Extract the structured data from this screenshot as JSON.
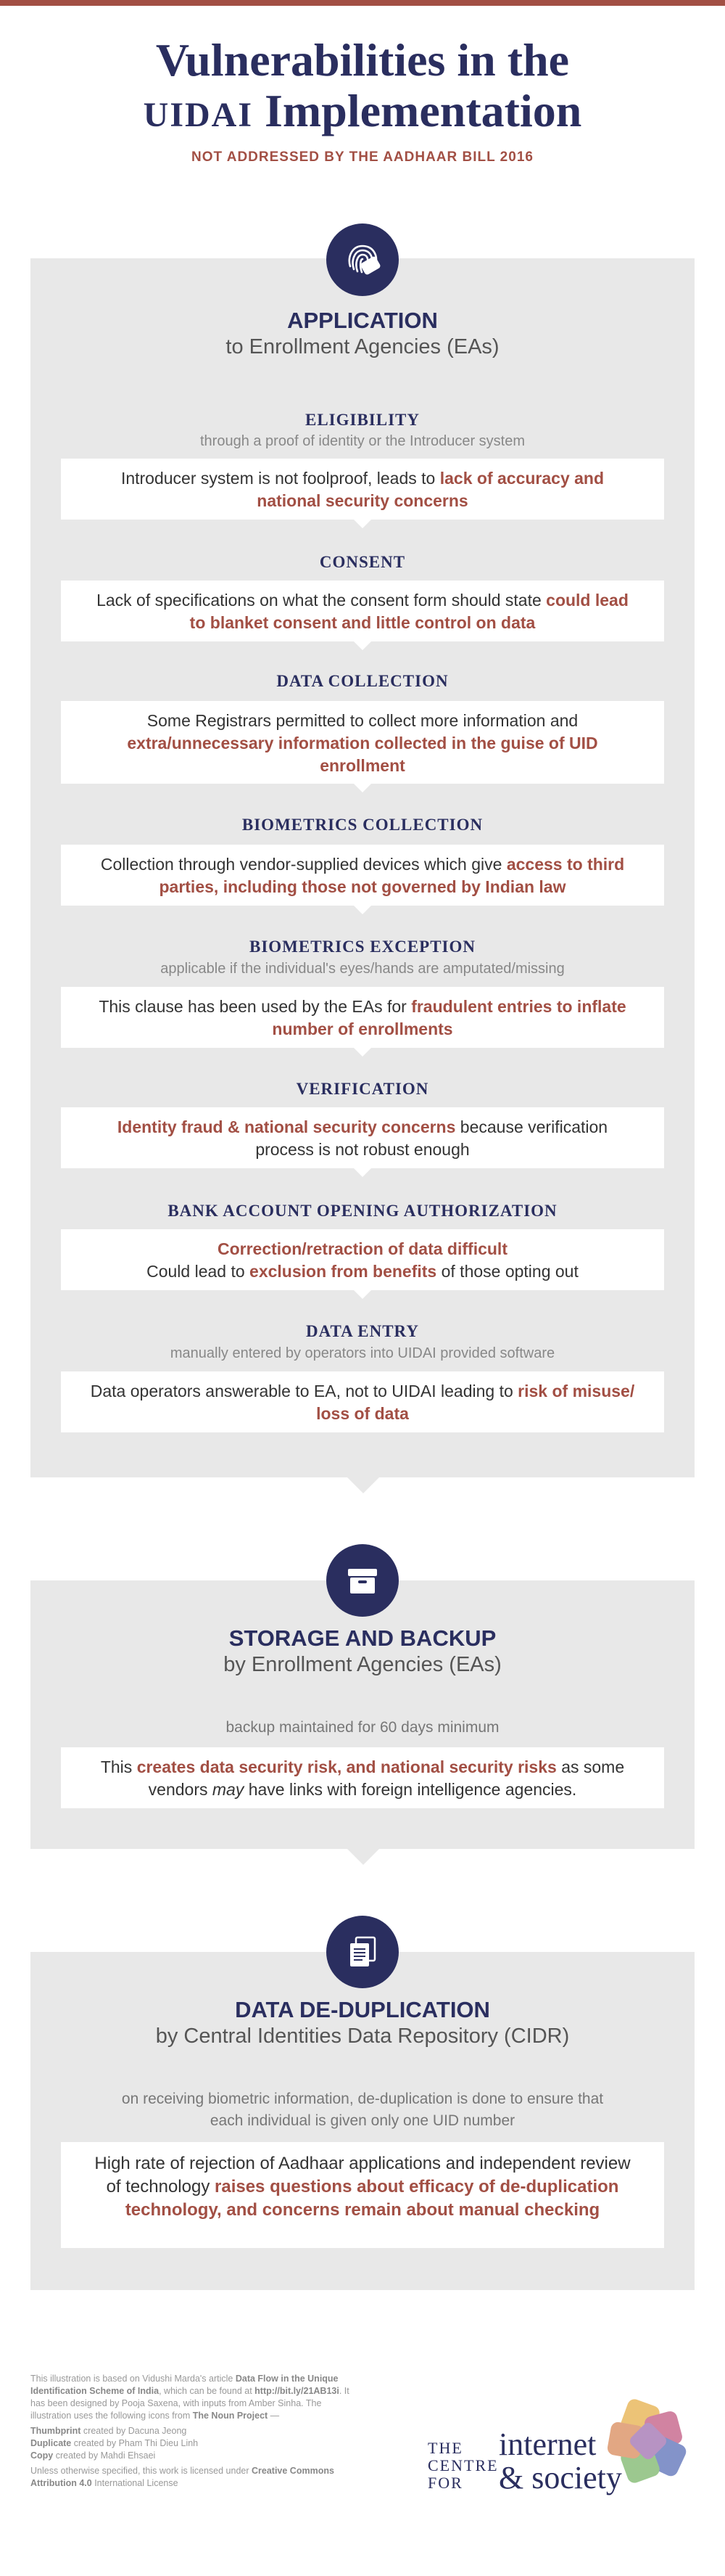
{
  "header": {
    "title_line1": "Vulnerabilities in the",
    "title_line2_small": "UIDAI",
    "title_line2_rest": " Implementation",
    "subtitle": "NOT ADDRESSED BY THE AADHAAR BILL 2016"
  },
  "colors": {
    "navy": "#2a2e5f",
    "accent": "#a24f44",
    "panel": "#e8e8e8"
  },
  "application": {
    "icon": "fingerprint-icon",
    "title": "APPLICATION",
    "subtitle": "to Enrollment Agencies (EAs)",
    "items": [
      {
        "head": "ELIGIBILITY",
        "note": "through a proof of identity or the Introducer system",
        "text_pre": "Introducer system is not foolproof, leads to ",
        "text_hl": "lack of accuracy and national security concerns",
        "text_post": ""
      },
      {
        "head": "CONSENT",
        "note": "",
        "text_pre": "Lack of specifications on what the consent form should state ",
        "text_hl": "could lead to blanket consent and little control on data",
        "text_post": ""
      },
      {
        "head": "DATA COLLECTION",
        "note": "",
        "text_pre": "Some Registrars permitted to collect more information and ",
        "text_hl": "extra/unnecessary information collected in the guise of UID enrollment",
        "text_post": ""
      },
      {
        "head": "BIOMETRICS COLLECTION",
        "note": "",
        "text_pre": "Collection through vendor-supplied devices which give ",
        "text_hl": "access to third parties, including those not governed by Indian law",
        "text_post": ""
      },
      {
        "head": "BIOMETRICS EXCEPTION",
        "note": "applicable if the individual's eyes/hands are amputated/missing",
        "text_pre": "This clause has been used by the EAs for ",
        "text_hl": "fraudulent entries to inflate number of enrollments",
        "text_post": ""
      },
      {
        "head": "VERIFICATION",
        "note": "",
        "text_pre": "",
        "text_hl": "Identity fraud & national security concerns",
        "text_post": " because verification process is not robust enough"
      },
      {
        "head": "BANK ACCOUNT OPENING AUTHORIZATION",
        "note": "",
        "text_pre": "",
        "text_hl": "Correction/retraction of data difficult",
        "text_post": "",
        "text2_pre": "Could lead to ",
        "text2_hl": "exclusion from benefits",
        "text2_post": " of those opting out"
      },
      {
        "head": "DATA ENTRY",
        "note": "manually entered by operators into UIDAI provided software",
        "text_pre": "Data operators answerable to EA, not to UIDAI leading to ",
        "text_hl": "risk of misuse/ loss of data",
        "text_post": ""
      }
    ]
  },
  "storage": {
    "icon": "archive-box-icon",
    "title": "STORAGE AND BACKUP",
    "subtitle": "by Enrollment Agencies (EAs)",
    "note": "backup maintained for 60 days minimum",
    "text_pre": "This ",
    "text_hl": "creates data security risk, and national security risks",
    "text_mid": " as some vendors ",
    "text_em": "may",
    "text_post": " have links with foreign intelligence agencies."
  },
  "dedup": {
    "icon": "duplicate-documents-icon",
    "title": "DATA DE-DUPLICATION",
    "subtitle": "by Central Identities Data Repository (CIDR)",
    "note_line1": "on receiving biometric information, de-duplication is done to ensure that",
    "note_line2": "each individual is given only one UID number",
    "text_pre": "High rate of rejection of Aadhaar applications and independent review of technology ",
    "text_hl": "raises questions about efficacy of de-duplication technology, and concerns remain about manual checking"
  },
  "footer": {
    "p1_a": "This illustration is based on Vidushi Marda's article ",
    "p1_b": "Data Flow in the Unique Identification Scheme of India",
    "p1_c": ", which can be found at ",
    "p1_d": "http://bit.ly/21AB13i",
    "p1_e": ". It has been designed by Pooja Saxena, with inputs from Amber Sinha. The illustration uses the following icons from ",
    "p1_f": "The Noun Project",
    "p1_g": " —",
    "credit1_b": "Thumbprint",
    "credit1": " created by Dacuna Jeong",
    "credit2_b": "Duplicate",
    "credit2": " created by Pham Thi Dieu Linh",
    "credit3_b": "Copy",
    "credit3": " created by Mahdi Ehsaei",
    "license_a": "Unless otherwise specified, this work is licensed under ",
    "license_b": "Creative Commons Attribution 4.0",
    "license_c": " International License",
    "logo_the1": "THE",
    "logo_the2": "CENTRE",
    "logo_the3": "FOR",
    "logo_main1": "internet",
    "logo_main2": "& society"
  }
}
